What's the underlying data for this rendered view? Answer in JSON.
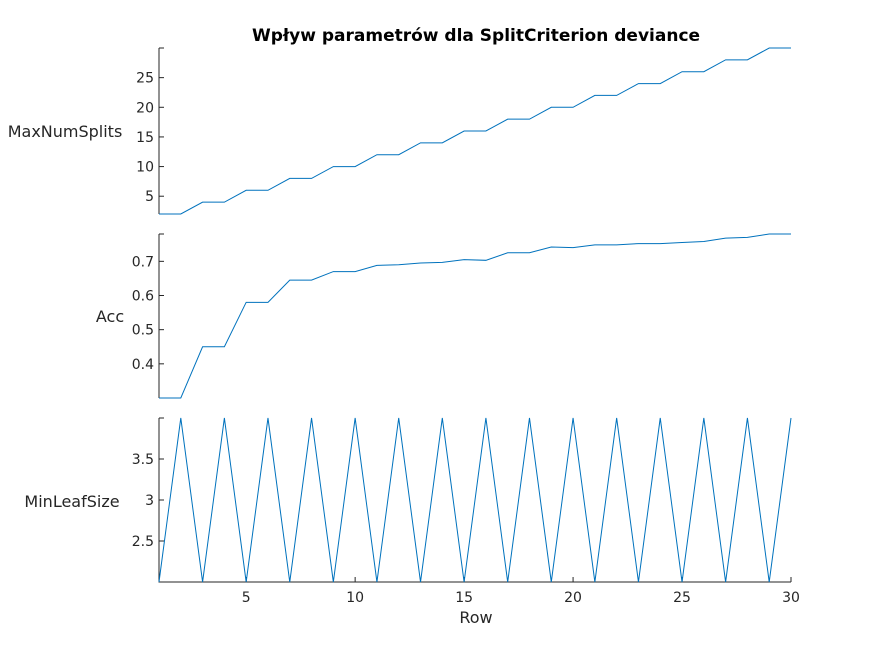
{
  "chart_data": {
    "type": "line",
    "title": "Wpływ parametrów dla SplitCriterion deviance",
    "xlabel": "Row",
    "xlim": [
      1,
      30
    ],
    "x_ticks": [
      5,
      10,
      15,
      20,
      25,
      30
    ],
    "x_tick_labels": [
      "5",
      "10",
      "15",
      "20",
      "25",
      "30"
    ],
    "x": [
      1,
      2,
      3,
      4,
      5,
      6,
      7,
      8,
      9,
      10,
      11,
      12,
      13,
      14,
      15,
      16,
      17,
      18,
      19,
      20,
      21,
      22,
      23,
      24,
      25,
      26,
      27,
      28,
      29,
      30
    ],
    "line_color": "#0072bd",
    "subplots": [
      {
        "ylabel": "MaxNumSplits",
        "ylim": [
          2,
          30
        ],
        "y_ticks": [
          5,
          10,
          15,
          20,
          25
        ],
        "y_tick_labels": [
          "5",
          "10",
          "15",
          "20",
          "25"
        ],
        "values": [
          2,
          2,
          4,
          4,
          6,
          6,
          8,
          8,
          10,
          10,
          12,
          12,
          14,
          14,
          16,
          16,
          18,
          18,
          20,
          20,
          22,
          22,
          24,
          24,
          26,
          26,
          28,
          28,
          30,
          30
        ]
      },
      {
        "ylabel": "Acc",
        "ylim": [
          0.3,
          0.78
        ],
        "y_ticks": [
          0.4,
          0.5,
          0.6,
          0.7
        ],
        "y_tick_labels": [
          "0.4",
          "0.5",
          "0.6",
          "0.7"
        ],
        "values": [
          0.3,
          0.3,
          0.45,
          0.45,
          0.58,
          0.58,
          0.645,
          0.645,
          0.67,
          0.67,
          0.688,
          0.69,
          0.695,
          0.697,
          0.705,
          0.703,
          0.725,
          0.725,
          0.742,
          0.74,
          0.748,
          0.748,
          0.752,
          0.752,
          0.755,
          0.758,
          0.768,
          0.77,
          0.78,
          0.78
        ]
      },
      {
        "ylabel": "MinLeafSize",
        "ylim": [
          2,
          4
        ],
        "y_ticks": [
          2.5,
          3,
          3.5
        ],
        "y_tick_labels": [
          "2.5",
          "3",
          "3.5"
        ],
        "values": [
          2,
          4,
          2,
          4,
          2,
          4,
          2,
          4,
          2,
          4,
          2,
          4,
          2,
          4,
          2,
          4,
          2,
          4,
          2,
          4,
          2,
          4,
          2,
          4,
          2,
          4,
          2,
          4,
          2,
          4
        ]
      }
    ]
  }
}
